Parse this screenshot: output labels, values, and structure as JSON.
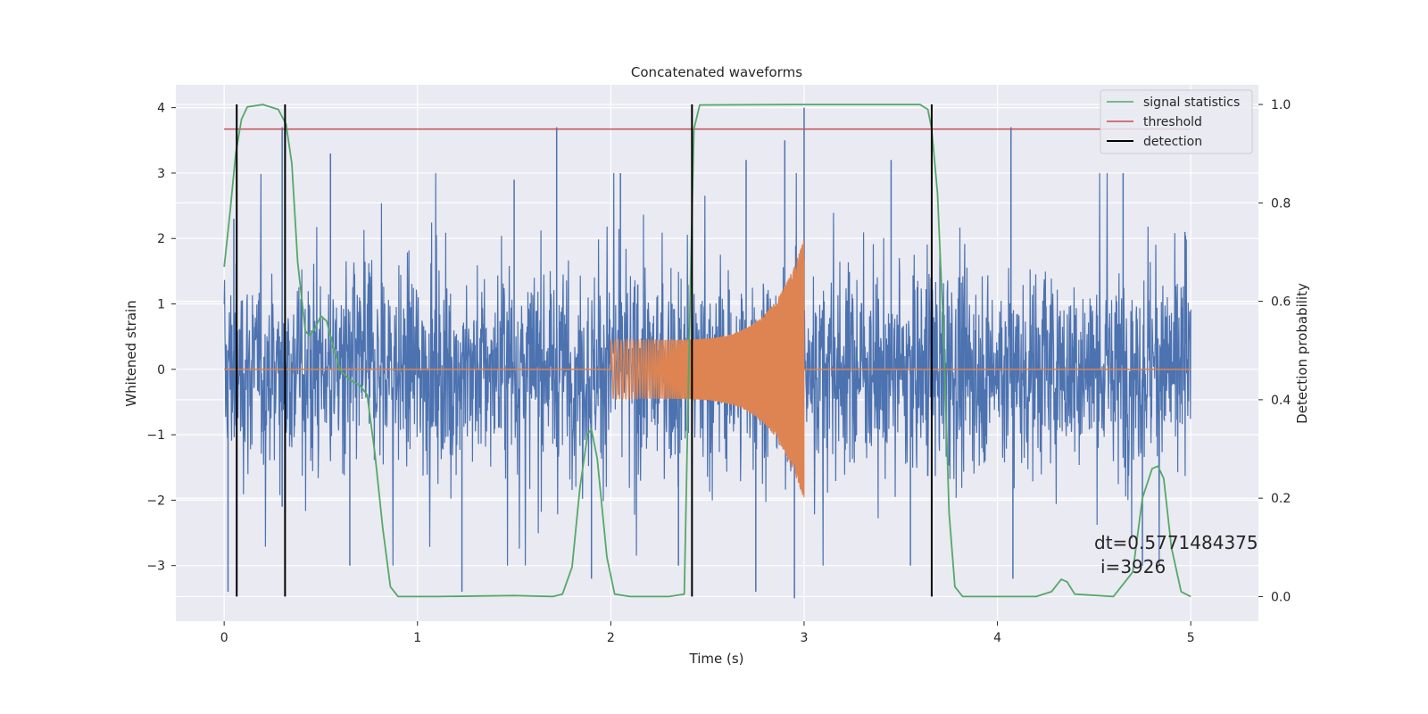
{
  "chart_data": {
    "type": "line",
    "title": "Concatenated waveforms",
    "xlabel": "Time (s)",
    "ylabel": "Whitened strain",
    "y2label": "Detection probability",
    "xlim": [
      -0.25,
      5.35
    ],
    "ylim": [
      -3.85,
      4.35
    ],
    "y2lim": [
      -0.05,
      1.04
    ],
    "xticks": [
      0,
      1,
      2,
      3,
      4,
      5
    ],
    "yticks": [
      -3,
      -2,
      -1,
      0,
      1,
      2,
      3,
      4
    ],
    "y2ticks": [
      0.0,
      0.2,
      0.4,
      0.6,
      0.8,
      1.0
    ],
    "xtick_labels": [
      "0",
      "1",
      "2",
      "3",
      "4",
      "5"
    ],
    "ytick_labels": [
      "−3",
      "−2",
      "−1",
      "0",
      "1",
      "2",
      "3",
      "4"
    ],
    "y2tick_labels": [
      "0.0",
      "0.2",
      "0.4",
      "0.6",
      "0.8",
      "1.0"
    ],
    "grid": true,
    "legend_position": "top-right",
    "legend": [
      {
        "name": "signal statistics",
        "color": "#55a868"
      },
      {
        "name": "threshold",
        "color": "#c44e52"
      },
      {
        "name": "detection",
        "color": "#000000"
      }
    ],
    "noise": {
      "color": "#4c72b0",
      "x_range": [
        0,
        5
      ],
      "typical_amplitude": 1.3,
      "peaks": [
        {
          "x": 0.02,
          "y": -3.4
        },
        {
          "x": 0.05,
          "y": 2.3
        },
        {
          "x": 0.3,
          "y": 3.7
        },
        {
          "x": 0.3,
          "y": -2.1
        },
        {
          "x": 0.55,
          "y": 3.3
        },
        {
          "x": 0.65,
          "y": -3.0
        },
        {
          "x": 1.23,
          "y": -3.4
        },
        {
          "x": 1.5,
          "y": 2.9
        },
        {
          "x": 1.72,
          "y": 3.7
        },
        {
          "x": 1.9,
          "y": -3.2
        },
        {
          "x": 2.05,
          "y": 3.0
        },
        {
          "x": 2.35,
          "y": -3.0
        },
        {
          "x": 2.7,
          "y": 3.2
        },
        {
          "x": 2.75,
          "y": -3.4
        },
        {
          "x": 2.9,
          "y": 3.5
        },
        {
          "x": 2.95,
          "y": -3.5
        },
        {
          "x": 3.0,
          "y": 4.0
        },
        {
          "x": 3.45,
          "y": 3.2
        },
        {
          "x": 3.55,
          "y": -3.0
        },
        {
          "x": 4.07,
          "y": 3.0
        },
        {
          "x": 4.08,
          "y": -3.2
        },
        {
          "x": 4.07,
          "y": 3.7
        },
        {
          "x": 4.65,
          "y": 3.0
        },
        {
          "x": 4.75,
          "y": -3.0
        },
        {
          "x": 4.97,
          "y": 2.1
        }
      ]
    },
    "injected_signal": {
      "color": "#dd8452",
      "x_range": [
        2.0,
        3.0
      ],
      "amplitude_start": 0.45,
      "amplitude_end": 2.0,
      "min_at_end": -1.95,
      "baseline_y": 0
    },
    "series": [
      {
        "name": "signal statistics",
        "axis": "right",
        "color": "#55a868",
        "points": [
          [
            0.0,
            0.67
          ],
          [
            0.03,
            0.78
          ],
          [
            0.06,
            0.9
          ],
          [
            0.09,
            0.97
          ],
          [
            0.12,
            0.995
          ],
          [
            0.2,
            1.0
          ],
          [
            0.28,
            0.99
          ],
          [
            0.32,
            0.96
          ],
          [
            0.35,
            0.88
          ],
          [
            0.38,
            0.68
          ],
          [
            0.42,
            0.54
          ],
          [
            0.44,
            0.53
          ],
          [
            0.47,
            0.545
          ],
          [
            0.5,
            0.57
          ],
          [
            0.53,
            0.56
          ],
          [
            0.57,
            0.5
          ],
          [
            0.6,
            0.46
          ],
          [
            0.65,
            0.44
          ],
          [
            0.7,
            0.43
          ],
          [
            0.74,
            0.41
          ],
          [
            0.78,
            0.29
          ],
          [
            0.82,
            0.14
          ],
          [
            0.86,
            0.02
          ],
          [
            0.9,
            0.0
          ],
          [
            1.1,
            0.0
          ],
          [
            1.5,
            0.002
          ],
          [
            1.7,
            0.0
          ],
          [
            1.75,
            0.005
          ],
          [
            1.8,
            0.06
          ],
          [
            1.84,
            0.22
          ],
          [
            1.88,
            0.33
          ],
          [
            1.9,
            0.34
          ],
          [
            1.93,
            0.28
          ],
          [
            1.98,
            0.08
          ],
          [
            2.02,
            0.005
          ],
          [
            2.1,
            0.0
          ],
          [
            2.3,
            0.0
          ],
          [
            2.38,
            0.005
          ],
          [
            2.41,
            0.6
          ],
          [
            2.43,
            0.95
          ],
          [
            2.46,
            0.999
          ],
          [
            3.0,
            1.0
          ],
          [
            3.6,
            1.0
          ],
          [
            3.64,
            0.99
          ],
          [
            3.66,
            0.95
          ],
          [
            3.69,
            0.82
          ],
          [
            3.72,
            0.55
          ],
          [
            3.75,
            0.17
          ],
          [
            3.78,
            0.02
          ],
          [
            3.82,
            0.0
          ],
          [
            4.2,
            0.0
          ],
          [
            4.28,
            0.01
          ],
          [
            4.33,
            0.035
          ],
          [
            4.36,
            0.03
          ],
          [
            4.4,
            0.005
          ],
          [
            4.6,
            0.0
          ],
          [
            4.7,
            0.05
          ],
          [
            4.75,
            0.2
          ],
          [
            4.8,
            0.26
          ],
          [
            4.83,
            0.265
          ],
          [
            4.86,
            0.24
          ],
          [
            4.9,
            0.1
          ],
          [
            4.95,
            0.01
          ],
          [
            5.0,
            0.0
          ]
        ]
      },
      {
        "name": "threshold",
        "axis": "right",
        "color": "#c44e52",
        "points": [
          [
            0.0,
            0.95
          ],
          [
            5.0,
            0.95
          ]
        ]
      },
      {
        "name": "detection",
        "axis": "right",
        "color": "#000000",
        "x": [
          0.065,
          0.315,
          2.42,
          3.66
        ],
        "y_extent": [
          0.0,
          1.0
        ]
      }
    ],
    "annotation": {
      "text_line1": "dt=0.5771484375",
      "text_line2": "i=3926",
      "x": 4.5,
      "y": -2.85
    }
  }
}
